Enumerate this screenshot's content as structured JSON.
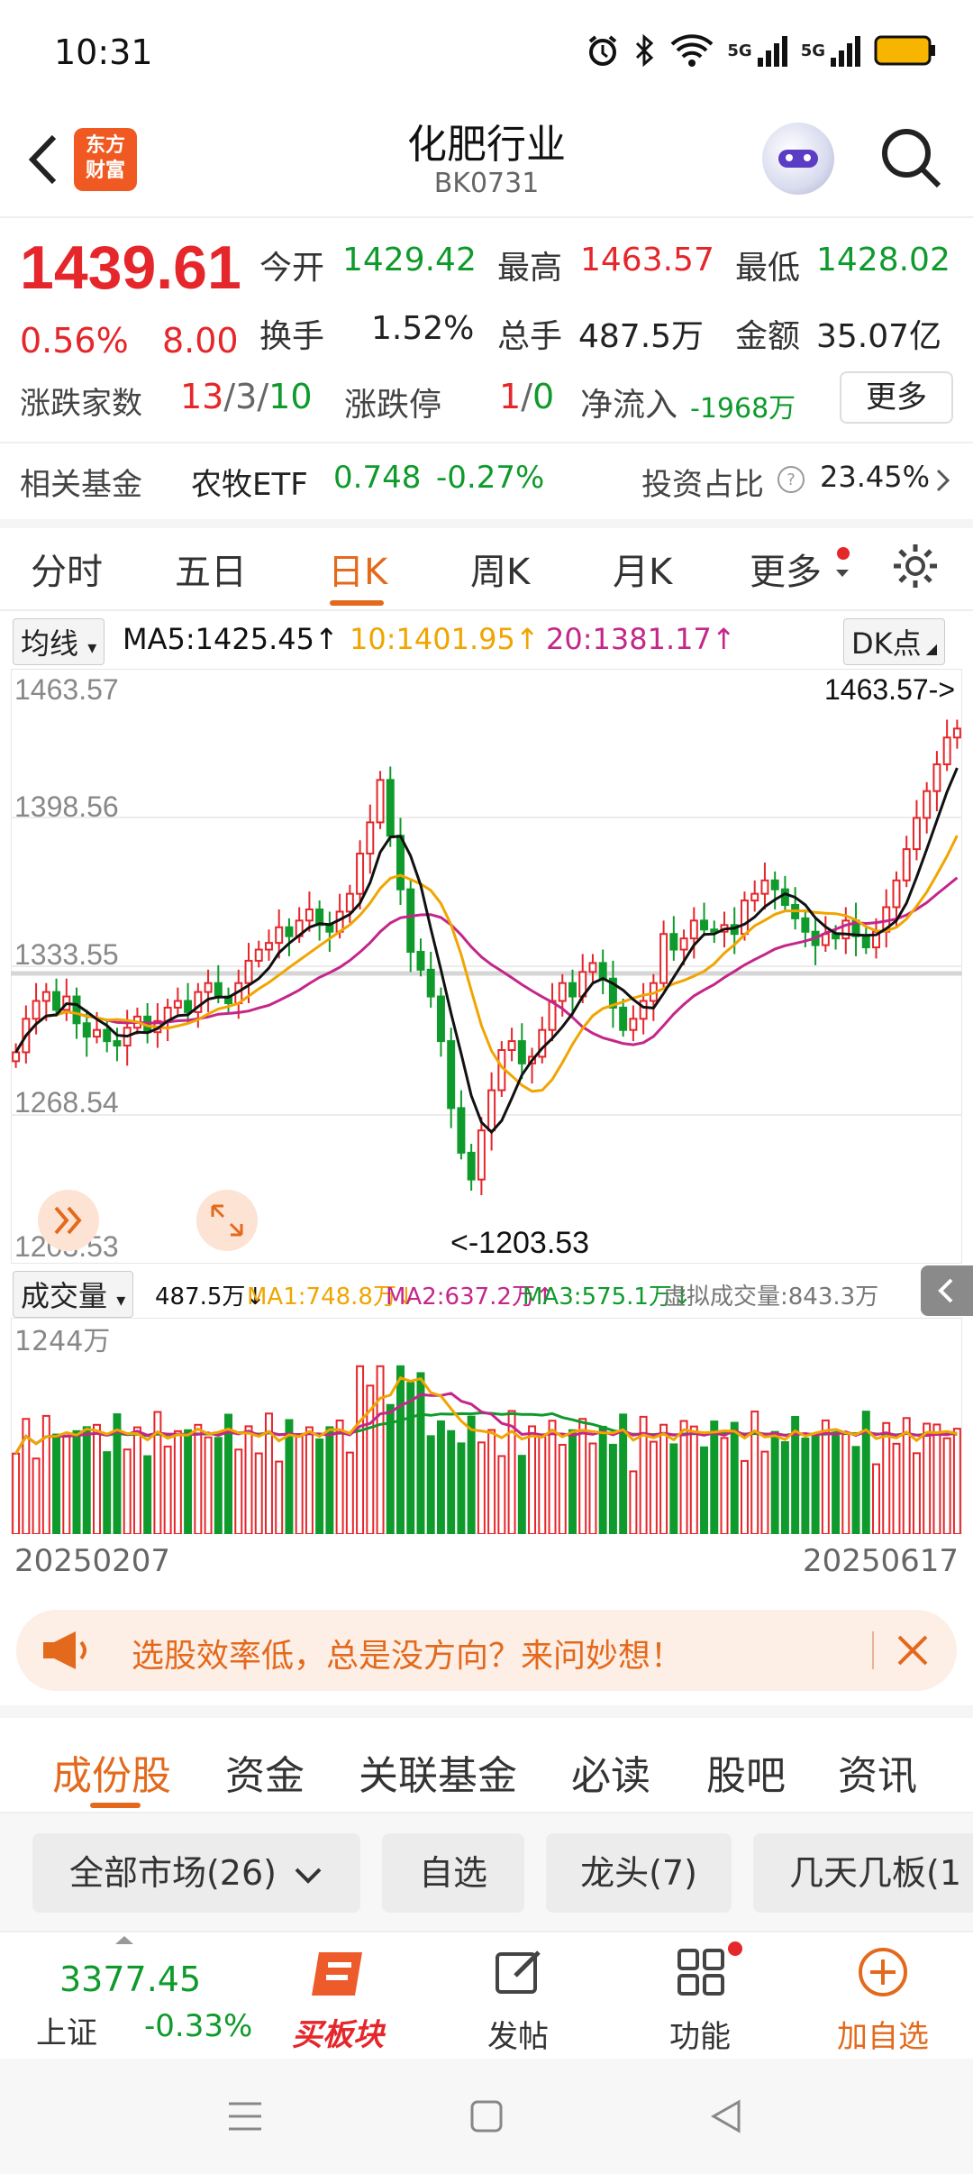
{
  "status_bar": {
    "time": "10:31",
    "net1": "5G",
    "net2": "5G"
  },
  "header": {
    "logo_line1": "东方",
    "logo_line2": "财富",
    "title": "化肥行业",
    "code": "BK0731"
  },
  "quote": {
    "price": "1439.61",
    "change_pct": "0.56%",
    "change": "8.00",
    "open_label": "今开",
    "open": "1429.42",
    "high_label": "最高",
    "high": "1463.57",
    "low_label": "最低",
    "low": "1428.02",
    "turnover_label": "换手",
    "turnover": "1.52%",
    "volume_label": "总手",
    "volume": "487.5万",
    "amount_label": "金额",
    "amount": "35.07亿",
    "breadth_label": "涨跌家数",
    "breadth_up": "13",
    "breadth_flat": "3",
    "breadth_down": "10",
    "limit_label": "涨跌停",
    "limit_up": "1",
    "limit_down": "0",
    "inflow_label": "净流入",
    "inflow": "-1968万",
    "more_button": "更多",
    "fund_label": "相关基金",
    "fund_name": "农牧ETF",
    "fund_price": "0.748",
    "fund_change": "-0.27%",
    "ratio_label": "投资占比",
    "ratio": "23.45%"
  },
  "period_tabs": [
    "分时",
    "五日",
    "日K",
    "周K",
    "月K",
    "更多"
  ],
  "ma": {
    "dropdown": "均线",
    "ma5": "MA5:1425.45↑",
    "ma10": "10:1401.95↑",
    "ma20": "20:1381.17↑",
    "dk_button": "DK点"
  },
  "price_axis": [
    "1463.57",
    "1398.56",
    "1333.55",
    "1268.54",
    "1203.53"
  ],
  "chart_labels": {
    "max_marker": "1463.57->",
    "min_marker": "<-1203.53"
  },
  "volume": {
    "dropdown": "成交量",
    "current": "487.5万↓",
    "ma1": "MA1:748.8万↓",
    "ma2": "MA2:637.2万↑",
    "ma3": "MA3:575.1万↓",
    "virtual": "虚拟成交量:843.3万",
    "axis_max": "1244万"
  },
  "dates": {
    "start": "20250207",
    "end": "20250617"
  },
  "banner": {
    "text": "选股效率低，总是没方向？来问妙想！"
  },
  "content_tabs": [
    "成份股",
    "资金",
    "关联基金",
    "必读",
    "股吧",
    "资讯"
  ],
  "filters": [
    "全部市场(26)",
    "自选",
    "龙头(7)",
    "几天几板(1"
  ],
  "bottom_bar": {
    "index_value": "3377.45",
    "index_name": "上证",
    "index_change": "-0.33%",
    "buy_label": "买板块",
    "post_label": "发帖",
    "func_label": "功能",
    "add_label": "加自选"
  },
  "colors": {
    "up": "#e5262b",
    "down": "#0f9a2c",
    "accent": "#e36a1c",
    "ma5": "#111111",
    "ma10": "#f0a500",
    "ma20": "#c4268a"
  },
  "chart_data": {
    "type": "candlestick",
    "ylim": [
      1203.53,
      1463.57
    ],
    "closes": [
      1295,
      1310,
      1318,
      1322,
      1314,
      1320,
      1308,
      1302,
      1305,
      1300,
      1298,
      1306,
      1311,
      1304,
      1309,
      1315,
      1318,
      1313,
      1322,
      1326,
      1320,
      1317,
      1326,
      1336,
      1341,
      1344,
      1351,
      1347,
      1354,
      1359,
      1352,
      1349,
      1358,
      1366,
      1384,
      1398,
      1417,
      1392,
      1368,
      1340,
      1332,
      1320,
      1300,
      1270,
      1250,
      1238,
      1260,
      1278,
      1296,
      1300,
      1290,
      1293,
      1305,
      1318,
      1326,
      1320,
      1331,
      1335,
      1328,
      1315,
      1305,
      1310,
      1318,
      1326,
      1348,
      1341,
      1346,
      1354,
      1350,
      1349,
      1352,
      1348,
      1363,
      1366,
      1372,
      1368,
      1361,
      1355,
      1349,
      1343,
      1348,
      1346,
      1354,
      1347,
      1342,
      1349,
      1360,
      1372,
      1386,
      1400,
      1412,
      1424,
      1436,
      1440
    ]
  }
}
